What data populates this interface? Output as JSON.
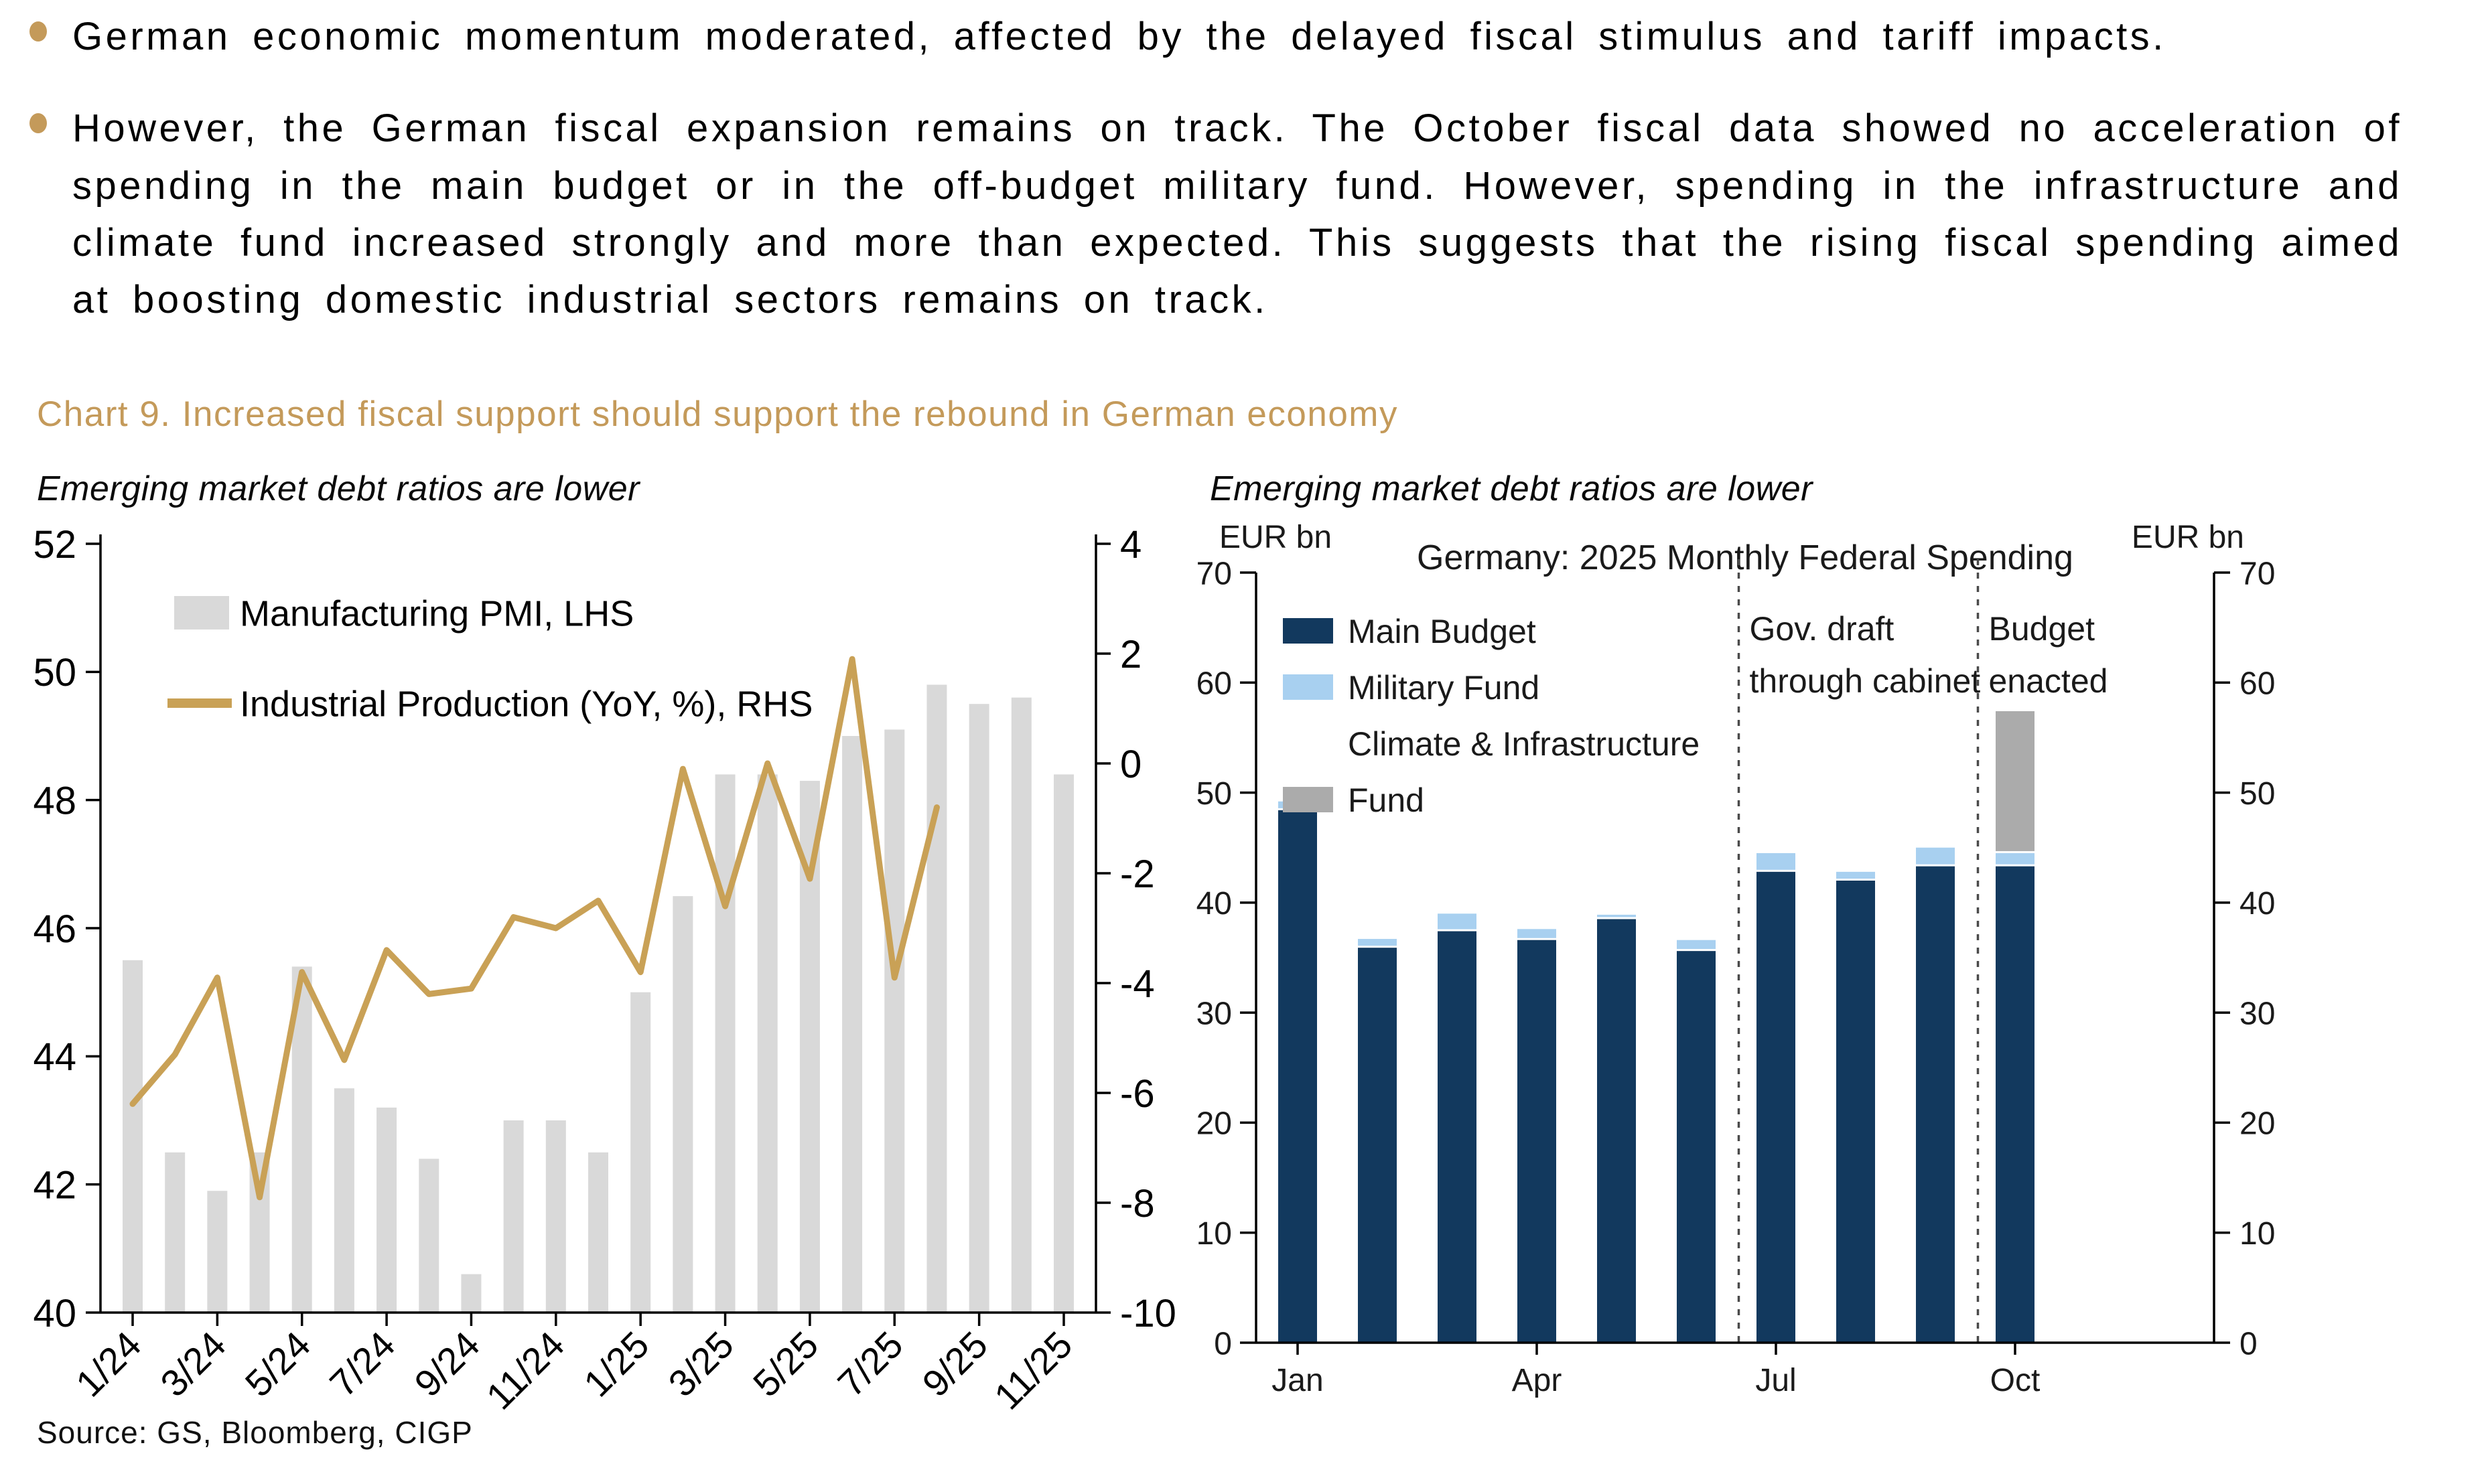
{
  "page": {
    "bullets": [
      "German economic momentum moderated, affected by the delayed fiscal stimulus and tariff impacts.",
      "However, the German fiscal expansion remains on track. The October fiscal data showed no acceleration of spending in the main budget or in the off-budget military fund. However, spending in the infrastructure and climate fund increased strongly and more than expected. This suggests that the rising fiscal spending aimed at boosting domestic industrial sectors remains on track."
    ],
    "section_title": "Chart 9. Increased fiscal support should support the rebound in German economy",
    "source": "Source: GS, Bloomberg, CIGP"
  },
  "colors": {
    "accent_gold": "#C49A5A",
    "pmi_bar": "#D9D9D9",
    "ip_line": "#C9A156",
    "main_budget": "#12395E",
    "military_fund": "#A8D0F0",
    "climate_fund": "#ABABAB",
    "dashed_line": "#4a4a4a",
    "axis": "#000000",
    "right_chart_text": "#1A1A1A"
  },
  "chart_data": [
    {
      "type": "bar+line",
      "subtitle": "Emerging market debt ratios are lower",
      "x": [
        "1/24",
        "2/24",
        "3/24",
        "4/24",
        "5/24",
        "6/24",
        "7/24",
        "8/24",
        "9/24",
        "10/24",
        "11/24",
        "12/24",
        "1/25",
        "2/25",
        "3/25",
        "4/25",
        "5/25",
        "6/25",
        "7/25",
        "8/25",
        "9/25",
        "10/25",
        "11/25"
      ],
      "x_tick_labels": [
        "1/24",
        "3/24",
        "5/24",
        "7/24",
        "9/24",
        "11/24",
        "1/25",
        "3/25",
        "5/25",
        "7/25",
        "9/25",
        "11/25"
      ],
      "series": [
        {
          "name": "Manufacturing PMI, LHS",
          "type": "bar",
          "axis": "left",
          "color": "#D9D9D9",
          "values": [
            45.5,
            42.5,
            41.9,
            42.5,
            45.4,
            43.5,
            43.2,
            42.4,
            40.6,
            43.0,
            43.0,
            42.5,
            45.0,
            46.5,
            48.4,
            48.4,
            48.3,
            49.0,
            49.1,
            49.8,
            49.5,
            49.6,
            48.4
          ]
        },
        {
          "name": "Industrial Production (YoY, %), RHS",
          "type": "line",
          "axis": "right",
          "color": "#C9A156",
          "values": [
            -6.2,
            -5.3,
            -3.9,
            -7.9,
            -3.8,
            -5.4,
            -3.4,
            -4.2,
            -4.1,
            -2.8,
            -3.0,
            -2.5,
            -3.8,
            -0.1,
            -2.6,
            0.0,
            -2.1,
            1.9,
            -3.9,
            -0.8,
            null,
            null,
            null
          ]
        }
      ],
      "left_axis": {
        "min": 40,
        "max": 52,
        "ticks": [
          52,
          50,
          48,
          46,
          44,
          42,
          40
        ]
      },
      "right_axis": {
        "min": -10,
        "max": 4,
        "ticks": [
          4,
          2,
          0,
          -2,
          -4,
          -6,
          -8,
          -10
        ]
      },
      "legend_position": "top-left-inside",
      "grid": false
    },
    {
      "type": "stacked-bar",
      "subtitle": "Emerging market debt ratios are lower",
      "title": "Germany: 2025 Monthly Federal Spending",
      "unit_left": "EUR bn",
      "unit_right": "EUR bn",
      "categories": [
        "Jan",
        "Feb",
        "Mar",
        "Apr",
        "May",
        "Jun",
        "Jul",
        "Aug",
        "Sep",
        "Oct"
      ],
      "x_tick_labels": [
        "Jan",
        "Apr",
        "Jul",
        "Oct"
      ],
      "series": [
        {
          "name": "Main Budget",
          "color": "#12395E",
          "values": [
            48.4,
            35.9,
            37.4,
            36.6,
            38.5,
            35.6,
            42.8,
            42.0,
            43.3,
            43.3
          ]
        },
        {
          "name": "Military Fund",
          "color": "#A8D0F0",
          "values": [
            0.8,
            0.8,
            1.6,
            1.0,
            0.4,
            1.0,
            1.7,
            0.8,
            1.7,
            1.2
          ]
        },
        {
          "name": "Climate & Infrastructure Fund",
          "legend_lines": [
            "Climate & Infrastructure",
            "Fund"
          ],
          "color": "#ABABAB",
          "values": [
            0,
            0,
            0,
            0,
            0,
            0,
            0,
            0,
            0,
            12.9
          ]
        }
      ],
      "y_axis": {
        "min": 0,
        "max": 70,
        "ticks": [
          0,
          10,
          20,
          30,
          40,
          50,
          60,
          70
        ]
      },
      "annotations": [
        {
          "lines": [
            "Gov. draft",
            "through cabinet"
          ],
          "after_category": "Jun"
        },
        {
          "lines": [
            "Budget",
            "enacted"
          ],
          "after_category": "Sep"
        }
      ],
      "grid": false
    }
  ]
}
